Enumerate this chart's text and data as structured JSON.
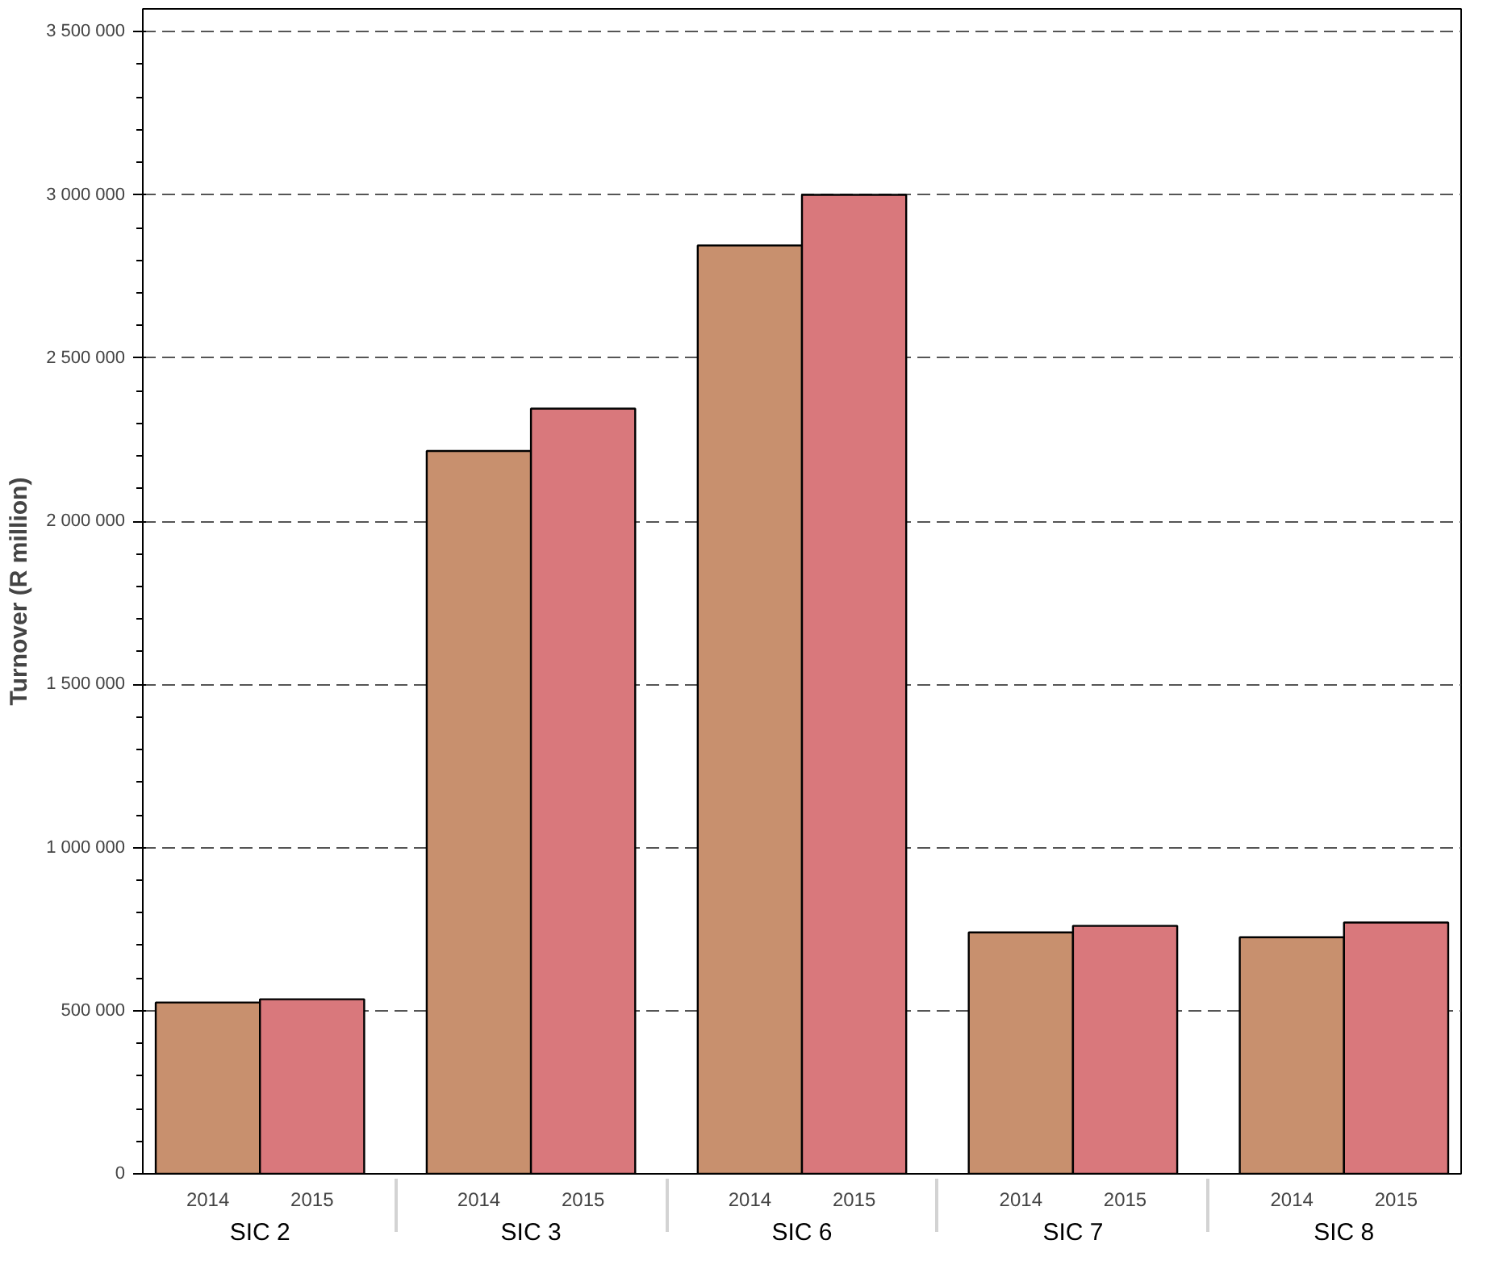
{
  "chart_data": {
    "type": "bar",
    "ylabel": "Turnover (R million)",
    "categories": [
      "SIC 2",
      "SIC 3",
      "SIC 6",
      "SIC 7",
      "SIC 8"
    ],
    "series": [
      {
        "name": "2014",
        "color": "#c8906e",
        "values": [
          525000,
          2215000,
          2845000,
          740000,
          725000
        ]
      },
      {
        "name": "2015",
        "color": "#d9787c",
        "values": [
          535000,
          2345000,
          3000000,
          760000,
          770000
        ]
      }
    ],
    "ylim": [
      0,
      3570000
    ],
    "yticks": [
      {
        "value": 0,
        "label": "0"
      },
      {
        "value": 500000,
        "label": "500 000"
      },
      {
        "value": 1000000,
        "label": "1 000 000"
      },
      {
        "value": 1500000,
        "label": "1 500 000"
      },
      {
        "value": 2000000,
        "label": "2 000 000"
      },
      {
        "value": 2500000,
        "label": "2 500 000"
      },
      {
        "value": 3000000,
        "label": "3 000 000"
      },
      {
        "value": 3500000,
        "label": "3 500 000"
      }
    ],
    "grid": "y",
    "legend": false
  }
}
